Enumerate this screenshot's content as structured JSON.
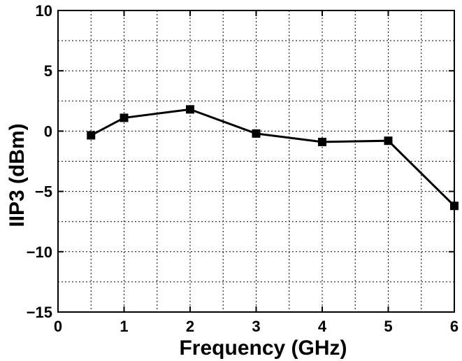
{
  "chart_data": {
    "type": "line",
    "xlabel": "Frequency (GHz)",
    "ylabel": "IIP3 (dBm)",
    "xlim": [
      0,
      6
    ],
    "ylim": [
      -15,
      10
    ],
    "x_ticks": [
      0,
      1,
      2,
      3,
      4,
      5,
      6
    ],
    "y_ticks": [
      -15,
      -10,
      -5,
      0,
      5,
      10
    ],
    "x_tick_labels": [
      "0",
      "1",
      "2",
      "3",
      "4",
      "5",
      "6"
    ],
    "y_tick_labels": [
      "−15",
      "−10",
      "−5",
      "0",
      "5",
      "10"
    ],
    "x_minor_grid": [
      0.5,
      1.5,
      2.5,
      3.5,
      4.5,
      5.5
    ],
    "y_minor_grid": [
      -12.5,
      -7.5,
      -2.5,
      2.5,
      7.5
    ],
    "grid": true,
    "series": [
      {
        "x": [
          0.5,
          1,
          2,
          3,
          4,
          5,
          6
        ],
        "values": [
          -0.35,
          1.1,
          1.8,
          -0.2,
          -0.9,
          -0.8,
          -6.2
        ],
        "marker": "square",
        "color": "#000000"
      }
    ]
  }
}
